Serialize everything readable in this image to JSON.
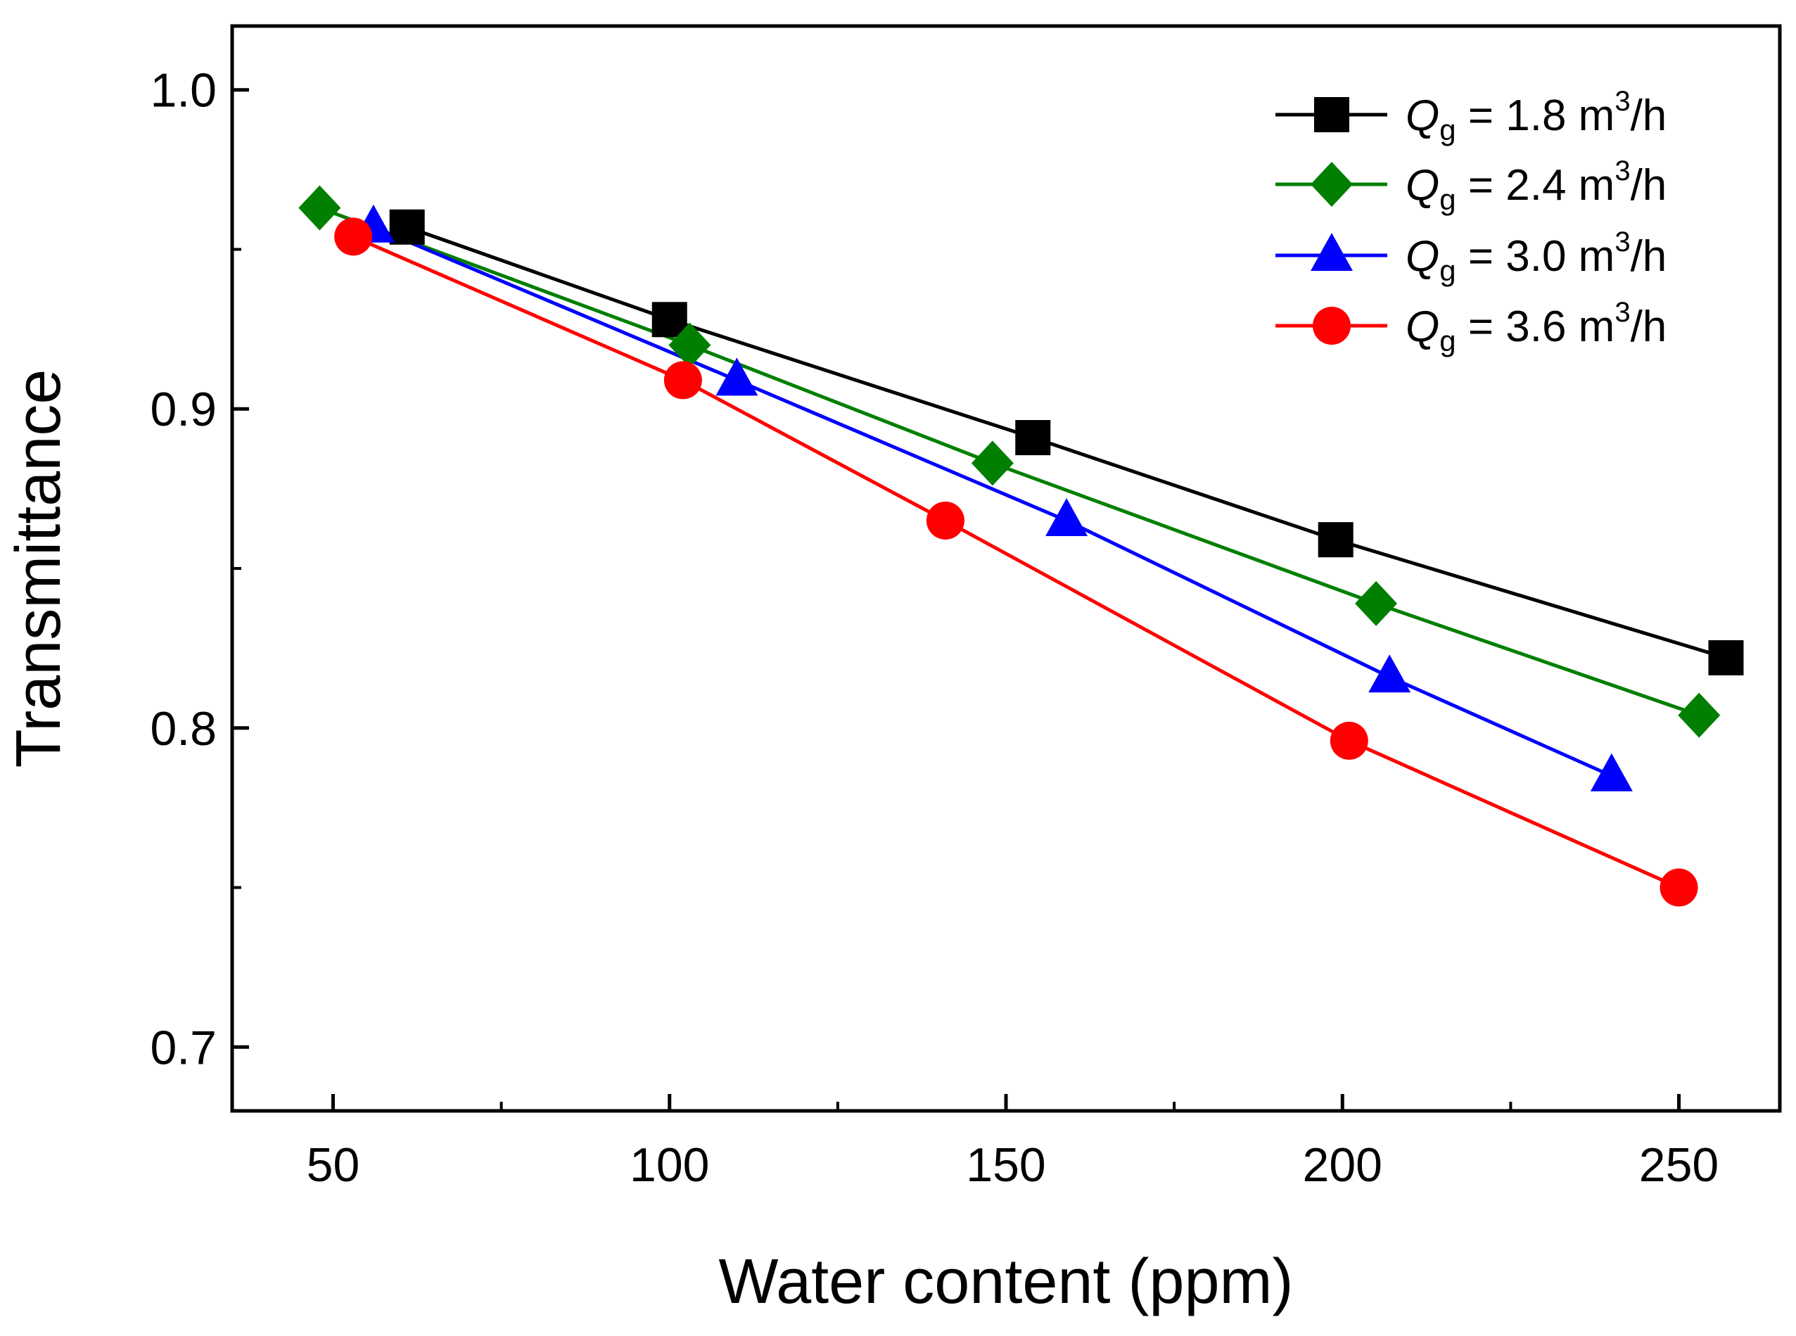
{
  "chart_data": {
    "type": "line",
    "xlabel": "Water content (ppm)",
    "ylabel": "Transmittance",
    "xlim": [
      35,
      265
    ],
    "ylim": [
      0.68,
      1.02
    ],
    "xticks": [
      50,
      100,
      150,
      200,
      250
    ],
    "xtick_labels": [
      "50",
      "100",
      "150",
      "200",
      "250"
    ],
    "x_minor_ticks": [
      75,
      125,
      175,
      225
    ],
    "yticks": [
      0.7,
      0.8,
      0.9,
      1.0
    ],
    "ytick_labels": [
      "0.7",
      "0.8",
      "0.9",
      "1.0"
    ],
    "y_minor_ticks": [
      0.75,
      0.85,
      0.95
    ],
    "grid": false,
    "legend_position": "top-right",
    "series": [
      {
        "name": "Qg = 1.8 m3/h",
        "legend": {
          "symbol": "Q",
          "subscript": "g",
          "value": " = 1.8 m",
          "superscript": "3",
          "unit": "/h"
        },
        "color": "#000000",
        "marker": "square",
        "x": [
          61,
          100,
          154,
          199,
          257
        ],
        "y": [
          0.957,
          0.928,
          0.891,
          0.859,
          0.822
        ]
      },
      {
        "name": "Qg = 2.4 m3/h",
        "legend": {
          "symbol": "Q",
          "subscript": "g",
          "value": " = 2.4 m",
          "superscript": "3",
          "unit": "/h"
        },
        "color": "#007f00",
        "marker": "diamond",
        "x": [
          48,
          103,
          148,
          205,
          253
        ],
        "y": [
          0.963,
          0.92,
          0.883,
          0.839,
          0.804
        ]
      },
      {
        "name": "Qg = 3.0 m3/h",
        "legend": {
          "symbol": "Q",
          "subscript": "g",
          "value": " = 3.0 m",
          "superscript": "3",
          "unit": "/h"
        },
        "color": "#0000ff",
        "marker": "triangle",
        "x": [
          56,
          110,
          159,
          207,
          240
        ],
        "y": [
          0.957,
          0.909,
          0.865,
          0.816,
          0.785
        ]
      },
      {
        "name": "Qg = 3.6 m3/h",
        "legend": {
          "symbol": "Q",
          "subscript": "g",
          "value": " = 3.6 m",
          "superscript": "3",
          "unit": "/h"
        },
        "color": "#ff0000",
        "marker": "circle",
        "x": [
          53,
          102,
          141,
          201,
          250
        ],
        "y": [
          0.954,
          0.909,
          0.865,
          0.796,
          0.75
        ]
      }
    ]
  }
}
